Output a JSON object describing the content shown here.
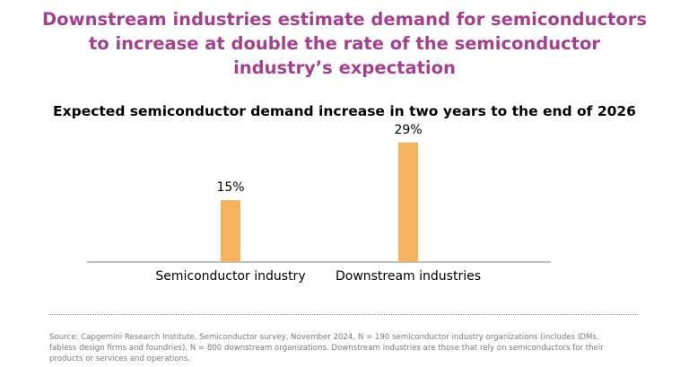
{
  "header": {
    "title_lines": [
      "Downstream industries estimate demand for semiconductors",
      "to increase at double the rate of the semiconductor",
      "industry’s expectation"
    ]
  },
  "chart_data": {
    "type": "bar",
    "title": "Expected semiconductor demand increase in two years to the end of 2026",
    "categories": [
      "Semiconductor industry",
      "Downstream industries"
    ],
    "values": [
      15,
      29
    ],
    "data_labels": [
      "15%",
      "29%"
    ],
    "ylim": [
      0,
      32
    ],
    "grid": false,
    "legend": "none",
    "bar_color": "#f4b35e"
  },
  "footer": {
    "source_lines": [
      "Source: Capgemini Research Institute, Semiconductor survey, November 2024, N = 190 semiconductor industry organizations (includes IDMs,",
      "fabless design firms and foundries), N = 800 downstream organizations. Downstream industries are those that rely on semiconductors for their",
      "products or services and operations."
    ]
  }
}
